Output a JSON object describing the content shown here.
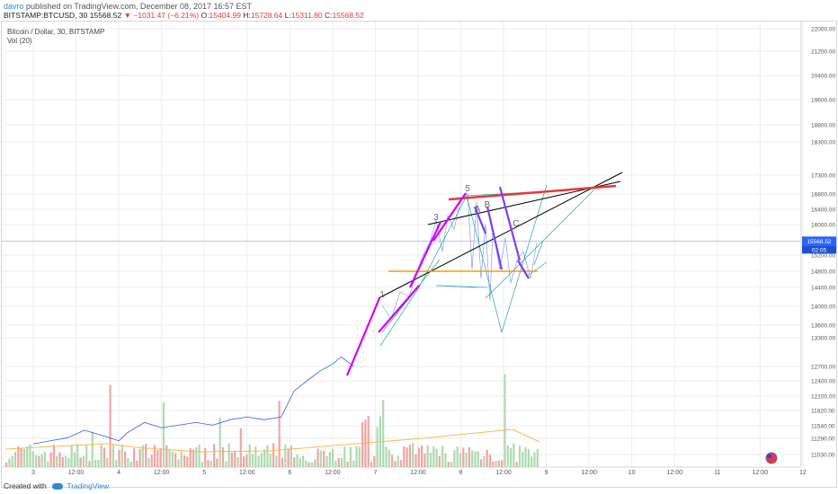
{
  "header": {
    "user": "davro",
    "published": "published on TradingView.com, December 08, 2017 16:57 EST",
    "symbol": "BITSTAMP:BTCUSD, 30",
    "last": "15568.52",
    "change": "▼ −1031.47 (−6.21%)",
    "o_label": "O:",
    "o_value": "15404.99",
    "h_label": "H:",
    "h_value": "15728.64",
    "l_label": "L:",
    "l_value": "15311.80",
    "c_label": "C:",
    "c_value": "15568.52"
  },
  "legend": {
    "title": "Bitcoin / Dollar, 30, BITSTAMP",
    "indicator": "Vol (20)"
  },
  "footer": {
    "created": "Created with",
    "brand": "TradingView"
  },
  "colors": {
    "price_line": "#2962ff",
    "impulse": "#d500f9",
    "corrective": "#7e3ff2",
    "resistance": "#e53935",
    "support": "#ff9800",
    "channel": "#000000",
    "fan": "#26a69a",
    "vol_up": "#a5d6a7",
    "vol_down": "#ef9a9a",
    "vol_ma": "#ffb74d",
    "price_tag": "#2962ff"
  },
  "chart_data": {
    "type": "line",
    "x_ticks": [
      "3",
      "12:00",
      "4",
      "12:00",
      "5",
      "12:00",
      "6",
      "12:00",
      "7",
      "12:00",
      "8",
      "12:00",
      "9",
      "12:00",
      "10",
      "12:00",
      "11",
      "12:00",
      "12"
    ],
    "y_ticks": [
      "22000.00",
      "21200.00",
      "20400.00",
      "19600.00",
      "18800.00",
      "18300.00",
      "17300.00",
      "16800.00",
      "16400.00",
      "16000.00",
      "15200.00",
      "14800.00",
      "14400.00",
      "14000.00",
      "13600.00",
      "13300.00",
      "12700.00",
      "12400.00",
      "12100.00",
      "11820.00",
      "11540.00",
      "11290.00",
      "11030.00"
    ],
    "last_price": "15568.52",
    "last_price_time": "02:05",
    "wave_labels": [
      "1",
      "3",
      "5",
      "A",
      "B",
      "C"
    ],
    "series": [
      {
        "values": [
          {
            "x": 3.0,
            "y": 11200
          },
          {
            "x": 3.2,
            "y": 11250
          },
          {
            "x": 3.4,
            "y": 11300
          },
          {
            "x": 3.6,
            "y": 11450
          },
          {
            "x": 3.8,
            "y": 11350
          },
          {
            "x": 4.0,
            "y": 11250
          },
          {
            "x": 4.1,
            "y": 11400
          },
          {
            "x": 4.3,
            "y": 11600
          },
          {
            "x": 4.5,
            "y": 11500
          },
          {
            "x": 4.7,
            "y": 11550
          },
          {
            "x": 4.9,
            "y": 11600
          },
          {
            "x": 5.1,
            "y": 11550
          },
          {
            "x": 5.3,
            "y": 11650
          },
          {
            "x": 5.5,
            "y": 11700
          },
          {
            "x": 5.7,
            "y": 11650
          },
          {
            "x": 5.9,
            "y": 11700
          },
          {
            "x": 6.05,
            "y": 12200
          },
          {
            "x": 6.2,
            "y": 12400
          },
          {
            "x": 6.35,
            "y": 12600
          },
          {
            "x": 6.5,
            "y": 12750
          },
          {
            "x": 6.6,
            "y": 12900
          },
          {
            "x": 6.75,
            "y": 12700
          }
        ]
      }
    ],
    "ylim": [
      11000,
      22200
    ],
    "xlim": [
      2.97,
      12.0
    ]
  }
}
